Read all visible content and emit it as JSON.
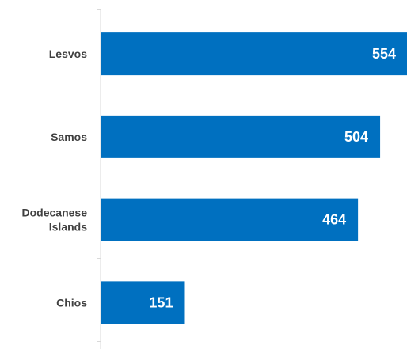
{
  "chart_data": {
    "type": "bar",
    "orientation": "horizontal",
    "categories": [
      "Lesvos",
      "Samos",
      "Dodecanese Islands",
      "Chios"
    ],
    "category_lines": [
      [
        "Lesvos"
      ],
      [
        "Samos"
      ],
      [
        "Dodecanese",
        "Islands"
      ],
      [
        "Chios"
      ]
    ],
    "values": [
      554,
      504,
      464,
      151
    ],
    "title": "",
    "xlabel": "",
    "ylabel": "",
    "xlim": [
      0,
      554
    ],
    "grid": false,
    "legend": "none",
    "bar_color": "#0070c0",
    "label_inside_color": "#ffffff",
    "label_outside_color": "#404040",
    "axis_color": "#d9d9d9"
  }
}
